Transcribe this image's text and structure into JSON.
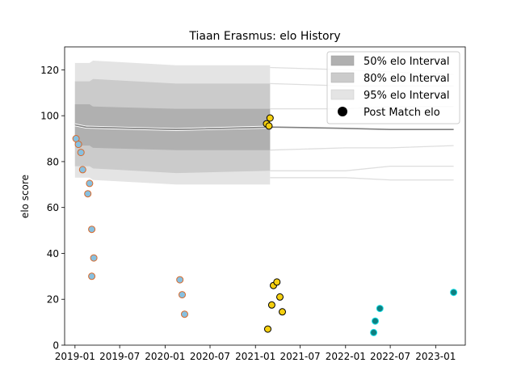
{
  "chart_data": {
    "type": "scatter",
    "title": "Tiaan Erasmus: elo History",
    "xlabel": "",
    "ylabel": "elo score",
    "x_ticks": [
      "2019-01",
      "2019-07",
      "2020-01",
      "2020-07",
      "2021-01",
      "2021-07",
      "2022-01",
      "2022-07",
      "2023-01"
    ],
    "y_ticks": [
      0,
      20,
      40,
      60,
      80,
      100,
      120
    ],
    "xlim": [
      "2018-11-20",
      "2023-05-01"
    ],
    "ylim": [
      0,
      130
    ],
    "grid": false,
    "legend_position": "top-right",
    "legend": [
      "50% elo Interval",
      "80% elo Interval",
      "95% elo Interval",
      "Post Match elo"
    ],
    "mean_line": {
      "x": [
        "2019-01-01",
        "2019-02-15",
        "2020-02-15",
        "2021-03-01",
        "2021-04-01",
        "2022-01-01",
        "2022-07-01",
        "2023-03-15"
      ],
      "y": [
        96,
        95,
        94,
        95,
        95,
        94.5,
        94,
        94
      ]
    },
    "intervals": [
      {
        "name": "95% elo Interval",
        "x": [
          "2019-01-01",
          "2019-03-01",
          "2019-03-15",
          "2020-02-15",
          "2021-03-01"
        ],
        "lower": [
          73,
          73,
          72,
          70,
          70
        ],
        "upper": [
          123,
          123,
          124,
          122,
          122
        ]
      },
      {
        "name": "80% elo Interval",
        "x": [
          "2019-01-01",
          "2019-03-01",
          "2019-03-15",
          "2020-02-15",
          "2021-03-01"
        ],
        "lower": [
          78,
          78,
          77,
          75,
          76
        ],
        "upper": [
          115,
          115,
          116,
          114,
          114
        ]
      },
      {
        "name": "50% elo Interval",
        "x": [
          "2019-01-01",
          "2019-03-01",
          "2019-03-15",
          "2020-02-15",
          "2021-03-01"
        ],
        "lower": [
          87,
          87,
          86,
          85,
          85
        ],
        "upper": [
          105,
          105,
          104,
          103,
          103
        ]
      }
    ],
    "future_bands": [
      {
        "x": [
          "2021-03-01",
          "2022-01-01",
          "2022-07-01",
          "2023-03-15"
        ],
        "y": [
          73,
          73,
          72,
          72
        ]
      },
      {
        "x": [
          "2021-03-01",
          "2022-01-01",
          "2022-07-01",
          "2023-03-15"
        ],
        "y": [
          76,
          76,
          78,
          78
        ]
      },
      {
        "x": [
          "2021-03-01",
          "2022-01-01",
          "2022-07-01",
          "2023-03-15"
        ],
        "y": [
          85,
          86,
          86,
          87
        ]
      },
      {
        "x": [
          "2021-03-01",
          "2022-01-01",
          "2022-07-01",
          "2023-03-15"
        ],
        "y": [
          103,
          103,
          104,
          104
        ]
      },
      {
        "x": [
          "2021-03-01",
          "2022-01-01",
          "2022-07-01",
          "2023-03-15"
        ],
        "y": [
          114,
          113,
          113,
          113
        ]
      },
      {
        "x": [
          "2021-03-01",
          "2022-01-01",
          "2022-07-01",
          "2023-03-15"
        ],
        "y": [
          121,
          120,
          119,
          118
        ]
      }
    ],
    "series": [
      {
        "face_color": "#87c0e0",
        "edge_color": "#d9692a",
        "points": [
          {
            "x": "2019-01-05",
            "y": 90
          },
          {
            "x": "2019-01-15",
            "y": 87.5
          },
          {
            "x": "2019-01-25",
            "y": 84
          },
          {
            "x": "2019-02-01",
            "y": 76.5
          },
          {
            "x": "2019-02-22",
            "y": 66
          },
          {
            "x": "2019-03-01",
            "y": 70.5
          },
          {
            "x": "2019-03-10",
            "y": 50.5
          },
          {
            "x": "2019-03-10",
            "y": 30
          },
          {
            "x": "2019-03-18",
            "y": 38
          }
        ]
      },
      {
        "face_color": "#87c0e0",
        "edge_color": "#d9692a",
        "points": [
          {
            "x": "2020-03-01",
            "y": 28.5
          },
          {
            "x": "2020-03-10",
            "y": 22
          },
          {
            "x": "2020-03-20",
            "y": 13.5
          }
        ]
      },
      {
        "face_color": "#f5cf0f",
        "edge_color": "#000000",
        "points": [
          {
            "x": "2021-02-15",
            "y": 96.5
          },
          {
            "x": "2021-02-20",
            "y": 7
          },
          {
            "x": "2021-02-25",
            "y": 95.5
          },
          {
            "x": "2021-03-01",
            "y": 99
          },
          {
            "x": "2021-03-08",
            "y": 17.5
          },
          {
            "x": "2021-03-15",
            "y": 26
          },
          {
            "x": "2021-03-29",
            "y": 27.5
          },
          {
            "x": "2021-04-10",
            "y": 21
          },
          {
            "x": "2021-04-20",
            "y": 14.5
          }
        ]
      },
      {
        "face_color": "#0f7f80",
        "edge_color": "#17e0e8",
        "points": [
          {
            "x": "2022-04-25",
            "y": 5.5
          },
          {
            "x": "2022-05-01",
            "y": 10.5
          },
          {
            "x": "2022-05-20",
            "y": 16
          },
          {
            "x": "2023-03-15",
            "y": 23
          }
        ]
      }
    ]
  }
}
